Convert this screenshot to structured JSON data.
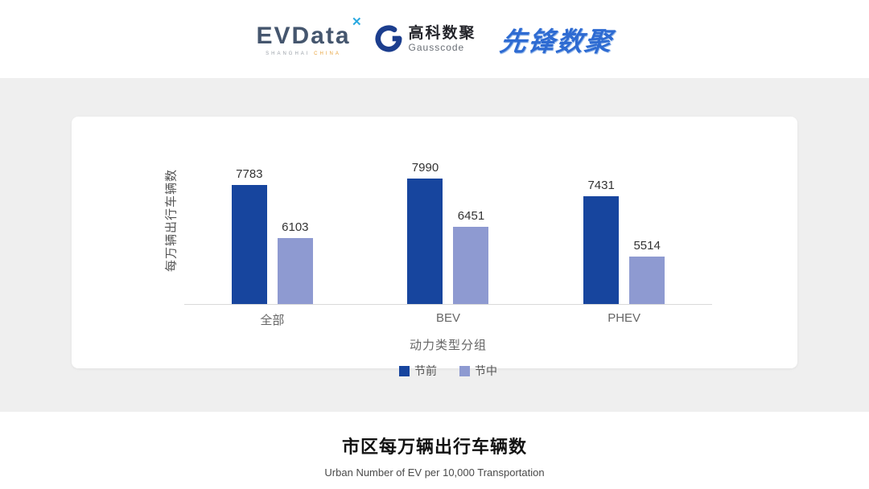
{
  "header": {
    "evdata": {
      "name": "EVData",
      "spark": "✕",
      "sub_left": "SHANGHAI",
      "sub_right": "CHINA"
    },
    "gausscode": {
      "cn": "高科数聚",
      "en": "Gausscode"
    },
    "pioneer": "先锋数聚"
  },
  "chart_data": {
    "type": "bar",
    "categories": [
      "全部",
      "BEV",
      "PHEV"
    ],
    "series": [
      {
        "name": "节前",
        "color": "#17459E",
        "values": [
          7783,
          7990,
          7431
        ]
      },
      {
        "name": "节中",
        "color": "#8E9AD1",
        "values": [
          6103,
          6451,
          5514
        ]
      }
    ],
    "xlabel": "动力类型分组",
    "ylabel": "每万辆出行车辆数",
    "ylim": [
      4000,
      8400
    ],
    "grid": false,
    "legend_position": "bottom",
    "value_labels": true
  },
  "footer": {
    "title": "市区每万辆出行车辆数",
    "subtitle": "Urban Number of EV per 10,000 Transportation"
  }
}
